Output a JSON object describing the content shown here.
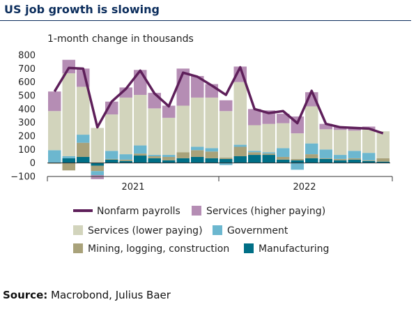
{
  "title": "US job growth is slowing",
  "source_label": "Source:",
  "source_text": "Macrobond, Julius Baer",
  "chart_data": {
    "type": "bar",
    "stacked": true,
    "ylabel": "1-month change in thousands",
    "ylim": [
      -100,
      800
    ],
    "yticks": [
      -100,
      0,
      100,
      200,
      300,
      400,
      500,
      600,
      700,
      800
    ],
    "year_labels": [
      "2021",
      "2022"
    ],
    "year_label_index": [
      5.5,
      17.5
    ],
    "year_divider_index": 11.5,
    "colors": {
      "nonfarm": "#5e1f5a",
      "services_high": "#b58db4",
      "services_low": "#d2d4bc",
      "government": "#6cb7cf",
      "mining": "#a9a27a",
      "manufacturing": "#006f86"
    },
    "legend": [
      {
        "key": "nonfarm",
        "label": "Nonfarm payrolls",
        "kind": "line"
      },
      {
        "key": "services_high",
        "label": "Services (higher paying)",
        "kind": "box"
      },
      {
        "key": "services_low",
        "label": "Services (lower paying)",
        "kind": "box"
      },
      {
        "key": "government",
        "label": "Government",
        "kind": "box"
      },
      {
        "key": "mining",
        "label": "Mining, logging, construction",
        "kind": "box"
      },
      {
        "key": "manufacturing",
        "label": "Manufacturing",
        "kind": "box"
      }
    ],
    "series": [
      {
        "key": "manufacturing",
        "values": [
          0,
          35,
          45,
          -20,
          25,
          15,
          55,
          35,
          20,
          35,
          45,
          35,
          30,
          50,
          60,
          60,
          25,
          20,
          35,
          30,
          20,
          25,
          15,
          10
        ]
      },
      {
        "key": "mining",
        "values": [
          -5,
          -55,
          105,
          -40,
          5,
          10,
          15,
          15,
          25,
          45,
          50,
          50,
          10,
          70,
          20,
          10,
          20,
          10,
          30,
          5,
          10,
          10,
          5,
          25
        ]
      },
      {
        "key": "government",
        "values": [
          95,
          15,
          60,
          -30,
          60,
          40,
          60,
          10,
          15,
          0,
          25,
          25,
          -15,
          15,
          10,
          10,
          65,
          -50,
          80,
          65,
          30,
          55,
          55,
          0
        ]
      },
      {
        "key": "services_low",
        "values": [
          290,
          615,
          355,
          260,
          270,
          420,
          375,
          345,
          275,
          345,
          365,
          375,
          345,
          465,
          190,
          210,
          185,
          190,
          275,
          150,
          185,
          150,
          175,
          200
        ]
      },
      {
        "key": "services_high",
        "values": [
          145,
          100,
          135,
          -30,
          95,
          75,
          185,
          115,
          90,
          275,
          160,
          100,
          80,
          115,
          120,
          100,
          70,
          125,
          105,
          40,
          25,
          25,
          20,
          0
        ]
      }
    ],
    "nonfarm_payrolls": [
      530,
      705,
      700,
      265,
      455,
      550,
      685,
      515,
      420,
      670,
      640,
      575,
      505,
      710,
      400,
      370,
      385,
      295,
      535,
      290,
      265,
      260,
      255,
      220
    ]
  }
}
